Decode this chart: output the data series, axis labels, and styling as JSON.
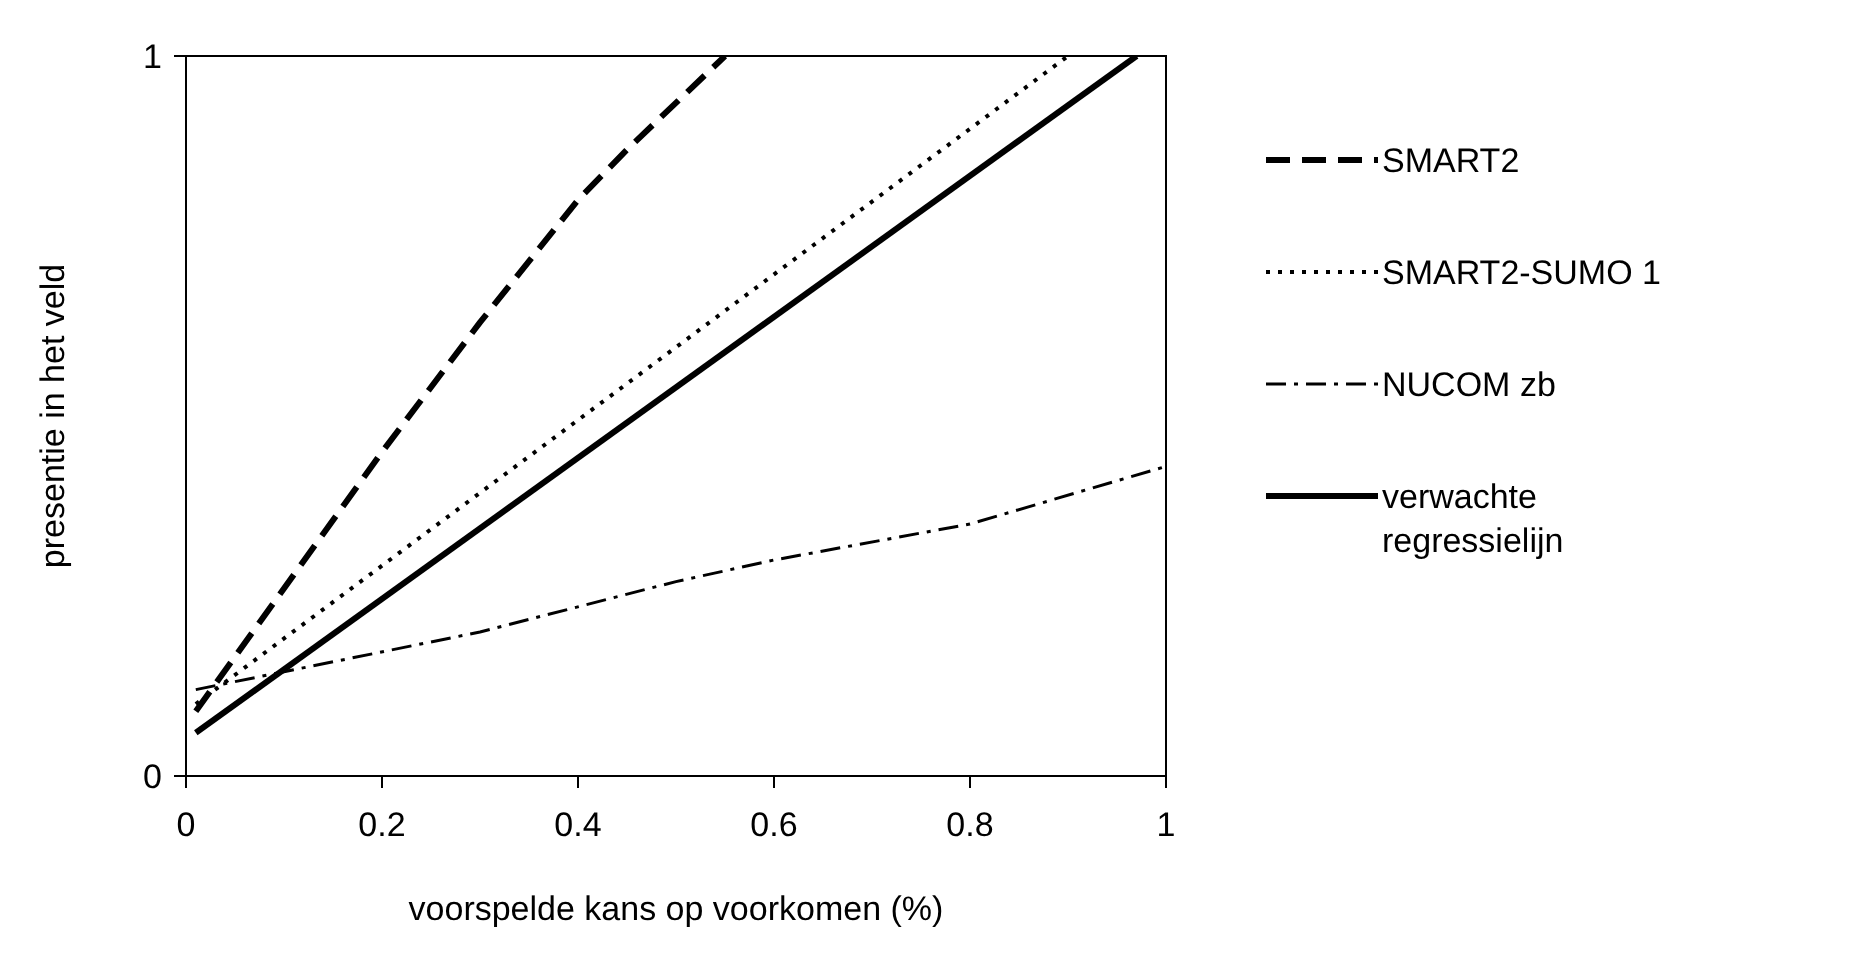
{
  "chart_data": {
    "type": "line",
    "xlabel": "voorspelde kans op voorkomen (%)",
    "ylabel": "presentie in het veld",
    "xlim": [
      0,
      1
    ],
    "ylim": [
      0,
      1
    ],
    "xticks": [
      0,
      0.2,
      0.4,
      0.6,
      0.8,
      1
    ],
    "yticks": [
      0,
      1
    ],
    "grid": false,
    "legend": "right",
    "marker": "none",
    "series": [
      {
        "name": "SMART2",
        "color": "#000000",
        "line_style": "dashed",
        "x": [
          0.01,
          0.2,
          0.3,
          0.4,
          0.45,
          0.55
        ],
        "values": [
          0.09,
          0.45,
          0.63,
          0.8,
          0.87,
          1.0
        ]
      },
      {
        "name": "SMART2-SUMO 1",
        "color": "#000000",
        "line_style": "dotted",
        "x": [
          0.01,
          0.9
        ],
        "values": [
          0.1,
          1.0
        ]
      },
      {
        "name": "NUCOM zb",
        "color": "#000000",
        "line_style": "dashdot",
        "x": [
          0.01,
          0.3,
          0.5,
          0.6,
          0.8,
          1.0
        ],
        "values": [
          0.12,
          0.2,
          0.27,
          0.3,
          0.35,
          0.43
        ]
      },
      {
        "name": "verwachte regressielijn",
        "color": "#000000",
        "line_style": "solid",
        "x": [
          0.01,
          0.97
        ],
        "values": [
          0.06,
          1.0
        ]
      }
    ]
  }
}
